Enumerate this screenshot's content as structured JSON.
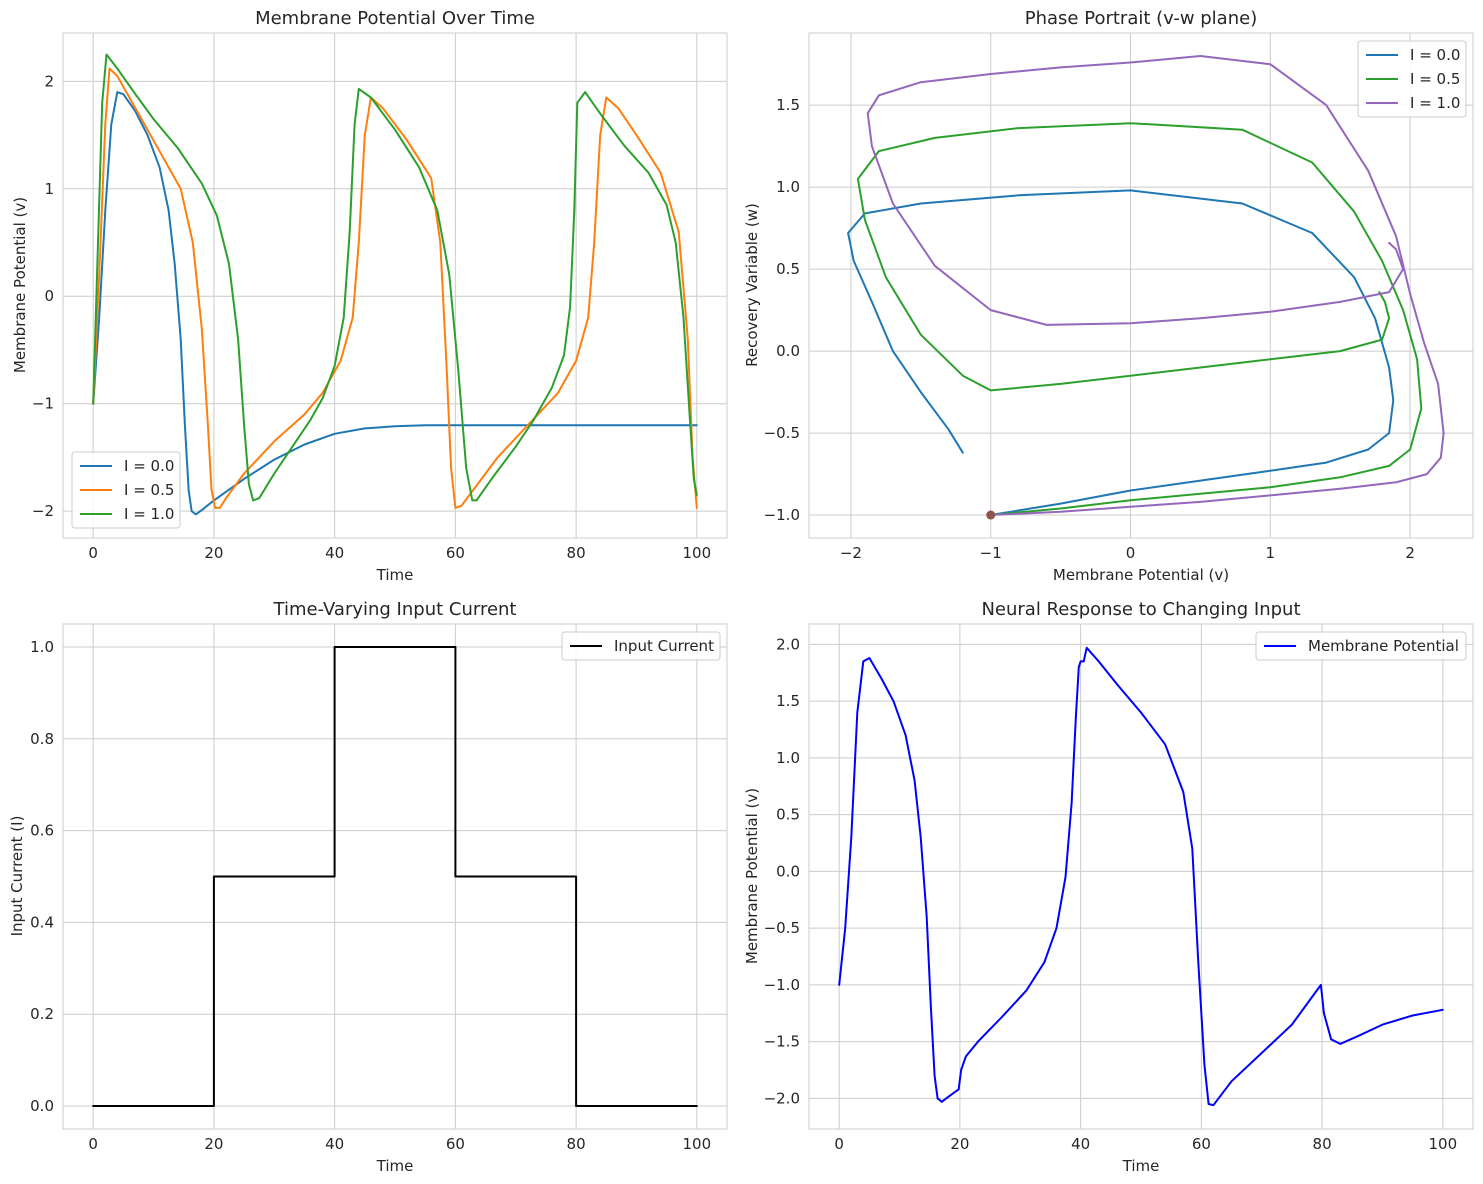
{
  "chart_data": [
    {
      "id": "p1",
      "type": "line",
      "title": "Membrane Potential Over Time",
      "xlabel": "Time",
      "ylabel": "Membrane Potential (v)",
      "xlim": [
        -5,
        105
      ],
      "ylim": [
        -2.25,
        2.45
      ],
      "xticks": [
        0,
        20,
        40,
        60,
        80,
        100
      ],
      "xtick_labels": [
        "0",
        "20",
        "40",
        "60",
        "80",
        "100"
      ],
      "yticks": [
        -2,
        -1,
        0,
        1,
        2
      ],
      "ytick_labels": [
        "−2",
        "−1",
        "0",
        "1",
        "2"
      ],
      "legend_position": "lower-left",
      "series": [
        {
          "name": "I = 0.0",
          "color": "#1f77b4",
          "x": [
            0,
            1,
            2,
            3,
            4,
            5,
            7,
            9,
            11,
            12.5,
            13.5,
            14.5,
            15.2,
            15.8,
            16.3,
            17,
            18,
            20,
            25,
            30,
            35,
            40,
            45,
            50,
            55,
            60,
            70,
            80,
            90,
            100
          ],
          "y": [
            -1,
            -0.2,
            0.8,
            1.6,
            1.9,
            1.88,
            1.72,
            1.5,
            1.2,
            0.8,
            0.3,
            -0.4,
            -1.2,
            -1.8,
            -2.0,
            -2.03,
            -1.99,
            -1.9,
            -1.7,
            -1.52,
            -1.38,
            -1.28,
            -1.23,
            -1.21,
            -1.2,
            -1.2,
            -1.2,
            -1.2,
            -1.2,
            -1.2
          ]
        },
        {
          "name": "I = 0.5",
          "color": "#ff7f0e",
          "x": [
            0,
            1,
            2,
            2.7,
            4,
            6,
            9,
            12,
            14.5,
            16.5,
            18,
            19,
            19.6,
            20.2,
            21,
            22,
            25,
            30,
            35,
            38,
            41,
            43,
            44,
            45,
            46,
            48,
            52,
            56,
            57.5,
            58.5,
            59.3,
            60,
            61,
            63,
            67,
            72,
            77,
            80,
            82,
            83,
            84,
            85,
            87,
            90,
            94,
            97,
            98.5,
            99.3,
            100
          ],
          "y": [
            -1,
            0.2,
            1.6,
            2.12,
            2.05,
            1.85,
            1.55,
            1.25,
            1.0,
            0.5,
            -0.3,
            -1.2,
            -1.8,
            -1.97,
            -1.97,
            -1.88,
            -1.65,
            -1.35,
            -1.1,
            -0.9,
            -0.6,
            -0.2,
            0.5,
            1.5,
            1.85,
            1.75,
            1.45,
            1.1,
            0.5,
            -0.6,
            -1.6,
            -1.97,
            -1.95,
            -1.8,
            -1.5,
            -1.2,
            -0.9,
            -0.6,
            -0.2,
            0.5,
            1.5,
            1.85,
            1.75,
            1.5,
            1.15,
            0.6,
            -0.4,
            -1.5,
            -1.97
          ]
        },
        {
          "name": "I = 1.0",
          "color": "#2ca02c",
          "x": [
            0,
            0.8,
            1.5,
            2.2,
            4,
            7,
            10,
            14,
            18,
            20.5,
            22.5,
            24,
            25,
            25.8,
            26.5,
            27.5,
            30,
            33,
            36,
            38,
            40,
            41.5,
            42.5,
            43.3,
            44,
            46,
            50,
            54,
            57,
            59,
            60.5,
            61.8,
            62.8,
            63.5,
            66,
            70,
            73,
            76,
            78,
            79,
            79.7,
            80.2,
            81.5,
            84,
            88,
            92,
            95,
            96.5,
            97.8,
            98.8,
            99.5,
            100
          ],
          "y": [
            -1,
            0.5,
            1.8,
            2.25,
            2.12,
            1.88,
            1.65,
            1.38,
            1.05,
            0.75,
            0.3,
            -0.4,
            -1.2,
            -1.75,
            -1.9,
            -1.88,
            -1.65,
            -1.4,
            -1.15,
            -0.95,
            -0.65,
            -0.2,
            0.6,
            1.6,
            1.93,
            1.85,
            1.55,
            1.2,
            0.8,
            0.2,
            -0.7,
            -1.6,
            -1.9,
            -1.9,
            -1.7,
            -1.4,
            -1.15,
            -0.85,
            -0.55,
            -0.1,
            0.8,
            1.8,
            1.9,
            1.7,
            1.4,
            1.15,
            0.85,
            0.5,
            -0.2,
            -1.1,
            -1.7,
            -1.85
          ]
        }
      ]
    },
    {
      "id": "p2",
      "type": "line",
      "title": "Phase Portrait (v-w plane)",
      "xlabel": "Membrane Potential (v)",
      "ylabel": "Recovery Variable (w)",
      "xlim": [
        -2.3,
        2.45
      ],
      "ylim": [
        -1.14,
        1.94
      ],
      "xticks": [
        -2,
        -1,
        0,
        1,
        2
      ],
      "xtick_labels": [
        "−2",
        "−1",
        "0",
        "1",
        "2"
      ],
      "yticks": [
        -1.0,
        -0.5,
        0.0,
        0.5,
        1.0,
        1.5
      ],
      "ytick_labels": [
        "−1.0",
        "−0.5",
        "0.0",
        "0.5",
        "1.0",
        "1.5"
      ],
      "legend_position": "upper-right",
      "start_point": {
        "v": -1,
        "w": -1,
        "color": "#8c564b"
      },
      "series": [
        {
          "name": "I = 0.0",
          "color": "#1f77b4",
          "x": [
            -1,
            -0.5,
            0,
            0.5,
            1,
            1.4,
            1.7,
            1.85,
            1.88,
            1.85,
            1.75,
            1.6,
            1.3,
            0.8,
            0,
            -0.8,
            -1.5,
            -1.9,
            -2.02,
            -1.98,
            -1.85,
            -1.7,
            -1.5,
            -1.3,
            -1.2
          ],
          "y": [
            -1,
            -0.93,
            -0.85,
            -0.79,
            -0.73,
            -0.68,
            -0.6,
            -0.5,
            -0.3,
            -0.1,
            0.2,
            0.45,
            0.72,
            0.9,
            0.98,
            0.95,
            0.9,
            0.84,
            0.72,
            0.55,
            0.3,
            0.0,
            -0.25,
            -0.48,
            -0.62
          ]
        },
        {
          "name": "I = 0.5",
          "color": "#2ca02c",
          "x": [
            -1,
            -0.5,
            0,
            0.5,
            1,
            1.5,
            1.85,
            2.0,
            2.08,
            2.05,
            1.95,
            1.8,
            1.6,
            1.3,
            0.8,
            0,
            -0.8,
            -1.4,
            -1.8,
            -1.95,
            -1.9,
            -1.75,
            -1.5,
            -1.2,
            -1,
            -0.5,
            0,
            0.5,
            1,
            1.5,
            1.8,
            1.85,
            1.82,
            1.78
          ],
          "y": [
            -1,
            -0.96,
            -0.91,
            -0.87,
            -0.83,
            -0.77,
            -0.7,
            -0.6,
            -0.35,
            -0.05,
            0.25,
            0.55,
            0.85,
            1.15,
            1.35,
            1.39,
            1.36,
            1.3,
            1.22,
            1.05,
            0.8,
            0.45,
            0.1,
            -0.15,
            -0.24,
            -0.2,
            -0.15,
            -0.1,
            -0.05,
            0.0,
            0.07,
            0.2,
            0.3,
            0.36
          ]
        },
        {
          "name": "I = 1.0",
          "color": "#9467bd",
          "x": [
            -1,
            -0.5,
            0,
            0.5,
            1,
            1.5,
            1.9,
            2.12,
            2.22,
            2.24,
            2.2,
            2.1,
            2.0,
            1.9,
            1.7,
            1.4,
            1,
            0.5,
            0,
            -0.5,
            -1,
            -1.5,
            -1.8,
            -1.88,
            -1.85,
            -1.7,
            -1.4,
            -1,
            -0.6,
            0,
            0.5,
            1,
            1.5,
            1.85,
            1.95,
            1.9,
            1.85
          ],
          "y": [
            -1,
            -0.98,
            -0.95,
            -0.92,
            -0.88,
            -0.84,
            -0.8,
            -0.75,
            -0.65,
            -0.5,
            -0.2,
            0.05,
            0.35,
            0.7,
            1.1,
            1.5,
            1.75,
            1.8,
            1.76,
            1.73,
            1.69,
            1.64,
            1.56,
            1.45,
            1.25,
            0.9,
            0.52,
            0.25,
            0.16,
            0.17,
            0.2,
            0.24,
            0.3,
            0.36,
            0.5,
            0.62,
            0.66
          ]
        }
      ]
    },
    {
      "id": "p3",
      "type": "line",
      "title": "Time-Varying Input Current",
      "xlabel": "Time",
      "ylabel": "Input Current (I)",
      "xlim": [
        -5,
        105
      ],
      "ylim": [
        -0.05,
        1.05
      ],
      "xticks": [
        0,
        20,
        40,
        60,
        80,
        100
      ],
      "xtick_labels": [
        "0",
        "20",
        "40",
        "60",
        "80",
        "100"
      ],
      "yticks": [
        0.0,
        0.2,
        0.4,
        0.6,
        0.8,
        1.0
      ],
      "ytick_labels": [
        "0.0",
        "0.2",
        "0.4",
        "0.6",
        "0.8",
        "1.0"
      ],
      "legend_position": "upper-right",
      "series": [
        {
          "name": "Input Current",
          "color": "#000000",
          "x": [
            0,
            20,
            20,
            40,
            40,
            60,
            60,
            80,
            80,
            100
          ],
          "y": [
            0,
            0,
            0.5,
            0.5,
            1.0,
            1.0,
            0.5,
            0.5,
            0,
            0
          ]
        }
      ]
    },
    {
      "id": "p4",
      "type": "line",
      "title": "Neural Response to Changing Input",
      "xlabel": "Time",
      "ylabel": "Membrane Potential (v)",
      "xlim": [
        -5,
        105
      ],
      "ylim": [
        -2.27,
        2.18
      ],
      "xticks": [
        0,
        20,
        40,
        60,
        80,
        100
      ],
      "xtick_labels": [
        "0",
        "20",
        "40",
        "60",
        "80",
        "100"
      ],
      "yticks": [
        -2.0,
        -1.5,
        -1.0,
        -0.5,
        0.0,
        0.5,
        1.0,
        1.5,
        2.0
      ],
      "ytick_labels": [
        "−2.0",
        "−1.5",
        "−1.0",
        "−0.5",
        "0.0",
        "0.5",
        "1.0",
        "1.5",
        "2.0"
      ],
      "legend_position": "upper-right",
      "series": [
        {
          "name": "Membrane Potential",
          "color": "#0000ff",
          "x": [
            0,
            1,
            2,
            3,
            4,
            5,
            7,
            9,
            11,
            12.5,
            13.5,
            14.5,
            15.2,
            15.8,
            16.3,
            17,
            18,
            19.8,
            20.2,
            21,
            23,
            27,
            31,
            34,
            36,
            37.5,
            38.5,
            39.2,
            39.7,
            40,
            40.5,
            41,
            43,
            46,
            50,
            54,
            57,
            58.5,
            59.5,
            60.5,
            61.2,
            62,
            65,
            70,
            75,
            79.8,
            80.3,
            81.5,
            83,
            86,
            90,
            95,
            100
          ],
          "y": [
            -1,
            -0.5,
            0.3,
            1.4,
            1.85,
            1.88,
            1.7,
            1.5,
            1.2,
            0.8,
            0.3,
            -0.4,
            -1.2,
            -1.8,
            -2.0,
            -2.03,
            -1.99,
            -1.92,
            -1.75,
            -1.63,
            -1.5,
            -1.28,
            -1.05,
            -0.8,
            -0.5,
            -0.05,
            0.6,
            1.35,
            1.8,
            1.85,
            1.85,
            1.97,
            1.85,
            1.65,
            1.4,
            1.12,
            0.7,
            0.2,
            -0.8,
            -1.7,
            -2.05,
            -2.06,
            -1.85,
            -1.6,
            -1.35,
            -1.0,
            -1.25,
            -1.48,
            -1.52,
            -1.45,
            -1.35,
            -1.27,
            -1.22
          ]
        }
      ]
    }
  ]
}
